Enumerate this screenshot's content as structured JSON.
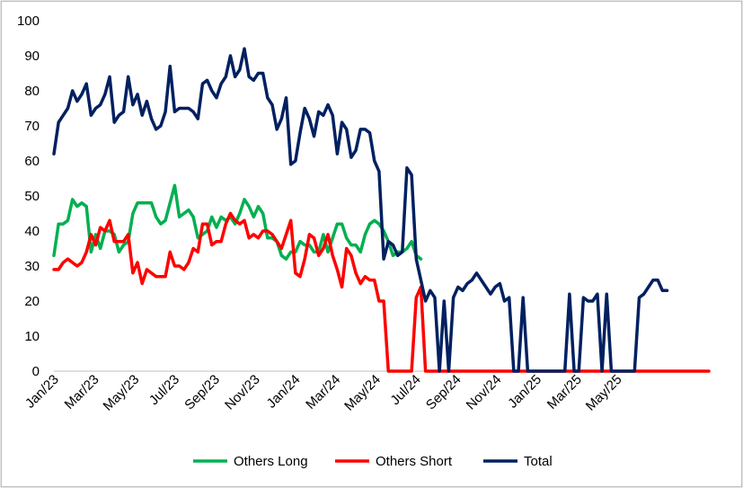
{
  "chart_data": {
    "type": "line",
    "title": "",
    "xlabel": "",
    "ylabel": "",
    "ylim": [
      0,
      100
    ],
    "y_ticks": [
      0,
      10,
      20,
      30,
      40,
      50,
      60,
      70,
      80,
      90,
      100
    ],
    "x_tick_labels": [
      "Jan/23",
      "Mar/23",
      "May/23",
      "Jul/23",
      "Sep/23",
      "Nov/23",
      "Jan/24",
      "Mar/24",
      "May/24",
      "Jul/24",
      "Sep/24",
      "Nov/24",
      "Jan/25",
      "Mar/25",
      "May/25"
    ],
    "grid": false,
    "legend_position": "bottom",
    "series": [
      {
        "name": "Others Long",
        "color": "#00b050",
        "values": [
          33,
          42,
          42,
          43,
          49,
          47,
          48,
          47,
          34,
          39,
          35,
          40,
          40,
          39,
          34,
          36,
          37,
          45,
          48,
          48,
          48,
          48,
          44,
          42,
          43,
          48,
          53,
          44,
          45,
          46,
          44,
          38,
          39,
          40,
          44,
          41,
          44,
          43,
          44,
          42,
          45,
          49,
          47,
          44,
          47,
          45,
          38,
          38,
          37,
          33,
          32,
          34,
          34,
          37,
          36,
          36,
          34,
          34,
          39,
          34,
          38,
          42,
          42,
          38,
          36,
          36,
          34,
          39,
          42,
          43,
          42,
          40,
          37,
          33,
          34,
          34,
          35,
          37,
          33,
          32,
          null,
          null,
          null,
          null,
          null,
          null,
          null,
          null,
          null,
          null,
          null,
          null,
          null,
          null,
          null,
          null,
          null,
          null,
          null,
          null,
          null,
          null,
          null,
          null,
          null,
          null,
          null,
          null,
          null,
          null,
          null,
          null,
          null,
          null,
          null,
          null,
          null,
          null,
          null,
          null,
          null,
          null,
          null,
          null,
          null,
          null,
          null,
          null,
          null,
          null,
          null,
          null,
          null,
          null,
          null,
          null,
          null,
          null,
          null,
          null,
          null,
          null
        ]
      },
      {
        "name": "Others Short",
        "color": "#ff0000",
        "values": [
          29,
          29,
          31,
          32,
          31,
          30,
          31,
          34,
          39,
          36,
          41,
          40,
          43,
          37,
          37,
          37,
          39,
          28,
          31,
          25,
          29,
          28,
          27,
          27,
          27,
          34,
          30,
          30,
          29,
          31,
          35,
          34,
          42,
          42,
          36,
          37,
          37,
          42,
          45,
          43,
          42,
          43,
          38,
          39,
          38,
          40,
          40,
          39,
          37,
          35,
          39,
          43,
          28,
          27,
          32,
          39,
          38,
          33,
          35,
          39,
          33,
          29,
          24,
          35,
          33,
          28,
          25,
          27,
          26,
          26,
          20,
          20,
          0,
          0,
          0,
          0,
          0,
          0,
          21,
          24,
          0,
          0,
          0,
          0,
          0,
          0,
          0,
          0,
          0,
          0,
          0,
          0,
          0,
          0,
          0,
          0,
          0,
          0,
          0,
          0,
          0,
          0,
          0,
          0,
          0,
          0,
          0,
          0,
          0,
          0,
          0,
          0,
          0,
          0,
          0,
          0,
          0,
          0,
          0,
          0,
          0,
          0,
          0,
          0,
          0,
          0,
          0,
          0,
          0,
          0,
          0,
          0,
          0,
          0,
          0,
          0,
          0,
          0,
          0,
          0,
          0,
          0
        ]
      },
      {
        "name": "Total",
        "color": "#002060",
        "values": [
          62,
          71,
          73,
          75,
          80,
          77,
          79,
          82,
          73,
          75,
          76,
          79,
          84,
          71,
          73,
          74,
          84,
          76,
          79,
          73,
          77,
          72,
          69,
          70,
          74,
          87,
          74,
          75,
          75,
          75,
          74,
          72,
          82,
          83,
          80,
          78,
          82,
          84,
          90,
          84,
          86,
          92,
          84,
          83,
          85,
          85,
          78,
          76,
          69,
          72,
          78,
          59,
          60,
          68,
          75,
          72,
          67,
          74,
          73,
          76,
          73,
          62,
          71,
          69,
          61,
          63,
          69,
          69,
          68,
          60,
          57,
          32,
          37,
          36,
          33,
          34,
          58,
          56,
          32,
          26,
          20,
          23,
          21,
          0,
          20,
          0,
          21,
          24,
          23,
          25,
          26,
          28,
          26,
          24,
          22,
          24,
          25,
          20,
          21,
          0,
          0,
          21,
          0,
          0,
          0,
          0,
          0,
          0,
          0,
          0,
          0,
          22,
          0,
          0,
          21,
          20,
          20,
          22,
          0,
          22,
          0,
          0,
          0,
          0,
          0,
          0,
          21,
          22,
          24,
          26,
          26,
          23,
          23
        ]
      }
    ]
  }
}
